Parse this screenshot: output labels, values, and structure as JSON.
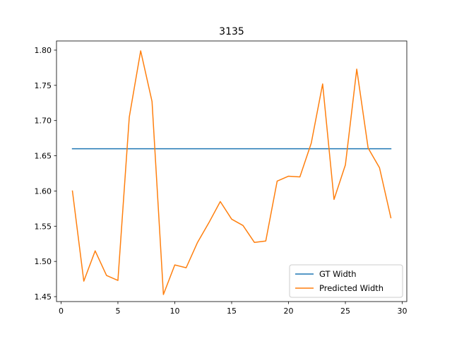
{
  "chart_data": {
    "type": "line",
    "title": "3135",
    "xlabel": "",
    "ylabel": "",
    "xlim": [
      -0.4,
      30.4
    ],
    "ylim": [
      1.443,
      1.813
    ],
    "xticks": [
      0,
      5,
      10,
      15,
      20,
      25,
      30
    ],
    "xtick_labels": [
      "0",
      "5",
      "10",
      "15",
      "20",
      "25",
      "30"
    ],
    "yticks": [
      1.45,
      1.5,
      1.55,
      1.6,
      1.65,
      1.7,
      1.75,
      1.8
    ],
    "ytick_labels": [
      "1.45",
      "1.50",
      "1.55",
      "1.60",
      "1.65",
      "1.70",
      "1.75",
      "1.80"
    ],
    "grid": false,
    "legend_position": "lower-right",
    "x": [
      1,
      2,
      3,
      4,
      5,
      6,
      7,
      8,
      9,
      10,
      11,
      12,
      13,
      14,
      15,
      16,
      17,
      18,
      19,
      20,
      21,
      22,
      23,
      24,
      25,
      26,
      27,
      28,
      29
    ],
    "series": [
      {
        "name": "GT Width",
        "color": "#1f77b4",
        "values": [
          1.66,
          1.66,
          1.66,
          1.66,
          1.66,
          1.66,
          1.66,
          1.66,
          1.66,
          1.66,
          1.66,
          1.66,
          1.66,
          1.66,
          1.66,
          1.66,
          1.66,
          1.66,
          1.66,
          1.66,
          1.66,
          1.66,
          1.66,
          1.66,
          1.66,
          1.66,
          1.66,
          1.66,
          1.66
        ]
      },
      {
        "name": "Predicted Width",
        "color": "#ff7f0e",
        "values": [
          1.6,
          1.472,
          1.515,
          1.48,
          1.473,
          1.705,
          1.799,
          1.727,
          1.453,
          1.495,
          1.491,
          1.527,
          1.555,
          1.585,
          1.56,
          1.551,
          1.527,
          1.529,
          1.614,
          1.621,
          1.62,
          1.668,
          1.752,
          1.588,
          1.637,
          1.773,
          1.661,
          1.633,
          1.562
        ]
      }
    ]
  }
}
